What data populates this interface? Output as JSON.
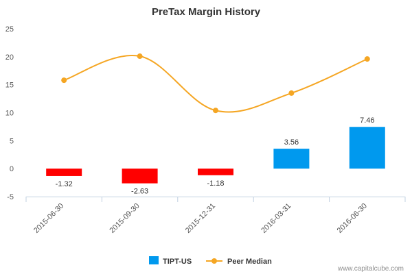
{
  "chart_data": {
    "type": "bar",
    "title": "PreTax Margin History",
    "categories": [
      "2015-06-30",
      "2015-09-30",
      "2015-12-31",
      "2016-03-31",
      "2016-06-30"
    ],
    "series": [
      {
        "name": "TIPT-US",
        "type": "bar",
        "values": [
          -1.32,
          -2.63,
          -1.18,
          3.56,
          7.46
        ],
        "labels": [
          "-1.32",
          "-2.63",
          "-1.18",
          "3.56",
          "7.46"
        ],
        "positive_color": "#0099ee",
        "negative_color": "#ff0000"
      },
      {
        "name": "Peer Median",
        "type": "line",
        "values": [
          15.8,
          20.1,
          10.4,
          13.5,
          19.6
        ],
        "color": "#f5a623"
      }
    ],
    "ylim": [
      -5,
      25
    ],
    "yticks": [
      25,
      20,
      15,
      10,
      5,
      0,
      -5
    ],
    "xlabel": "",
    "ylabel": "",
    "grid": false,
    "legend_position": "bottom-center"
  },
  "footer": {
    "credit": "www.capitalcube.com"
  }
}
